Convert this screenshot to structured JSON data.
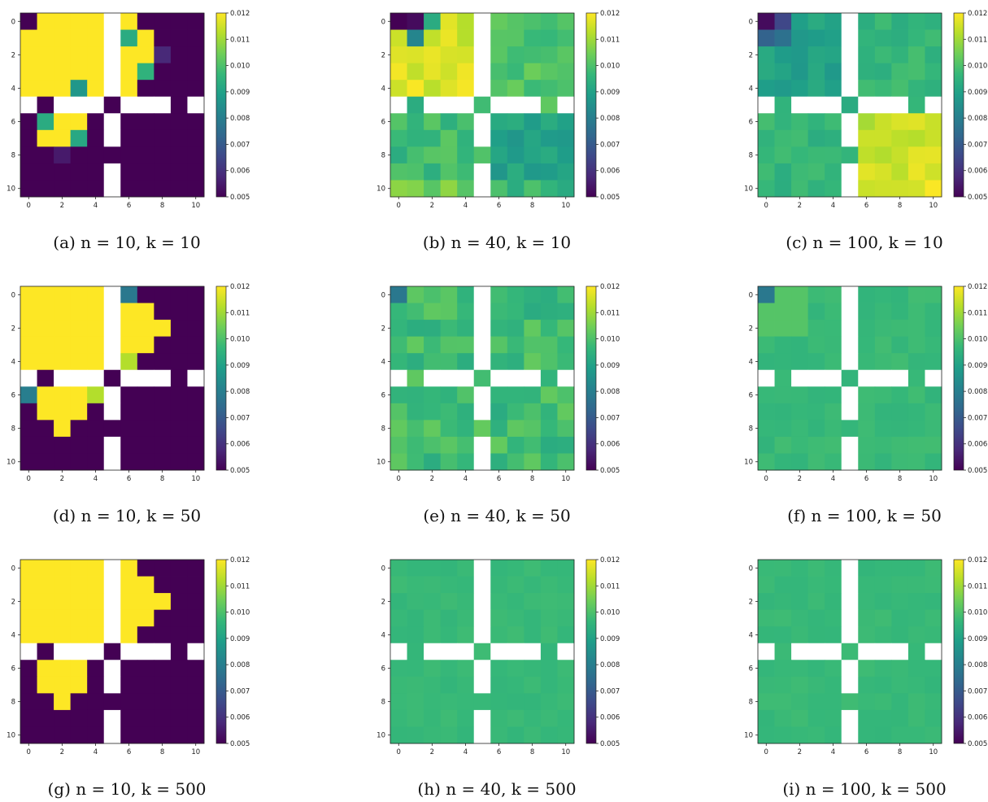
{
  "chart_data": [
    {
      "type": "heatmap",
      "caption": "(a) n = 10, k = 10",
      "pattern": "a"
    },
    {
      "type": "heatmap",
      "caption": "(b) n = 40, k = 10",
      "pattern": "b"
    },
    {
      "type": "heatmap",
      "caption": "(c) n = 100, k = 10",
      "pattern": "c"
    },
    {
      "type": "heatmap",
      "caption": "(d) n = 10, k = 50",
      "pattern": "d"
    },
    {
      "type": "heatmap",
      "caption": "(e) n = 40, k = 50",
      "pattern": "e"
    },
    {
      "type": "heatmap",
      "caption": "(f) n = 100, k = 50",
      "pattern": "f"
    },
    {
      "type": "heatmap",
      "caption": "(g) n = 10, k = 500",
      "pattern": "g"
    },
    {
      "type": "heatmap",
      "caption": "(h) n = 40, k = 500",
      "pattern": "h"
    },
    {
      "type": "heatmap",
      "caption": "(i) n = 100, k = 500",
      "pattern": "i"
    }
  ],
  "axes": {
    "ticks": [
      "0",
      "2",
      "4",
      "6",
      "8",
      "10"
    ],
    "colorbar_ticks": [
      "0.012",
      "0.011",
      "0.010",
      "0.009",
      "0.008",
      "0.007",
      "0.006",
      "0.005"
    ],
    "vmin": 0.005,
    "vmax": 0.012
  },
  "walls": [
    [
      0,
      5
    ],
    [
      1,
      5
    ],
    [
      2,
      5
    ],
    [
      3,
      5
    ],
    [
      4,
      5
    ],
    [
      6,
      5
    ],
    [
      7,
      5
    ],
    [
      9,
      5
    ],
    [
      10,
      5
    ],
    [
      5,
      0
    ],
    [
      5,
      2
    ],
    [
      5,
      3
    ],
    [
      5,
      4
    ],
    [
      5,
      6
    ],
    [
      5,
      7
    ],
    [
      5,
      8
    ],
    [
      5,
      10
    ]
  ],
  "colors": {
    "wall": "#ffffff",
    "viridis": [
      "#440154",
      "#482878",
      "#3e4989",
      "#31688e",
      "#26828e",
      "#1f9e89",
      "#35b779",
      "#6ece58",
      "#b5de2b",
      "#fde725"
    ]
  }
}
